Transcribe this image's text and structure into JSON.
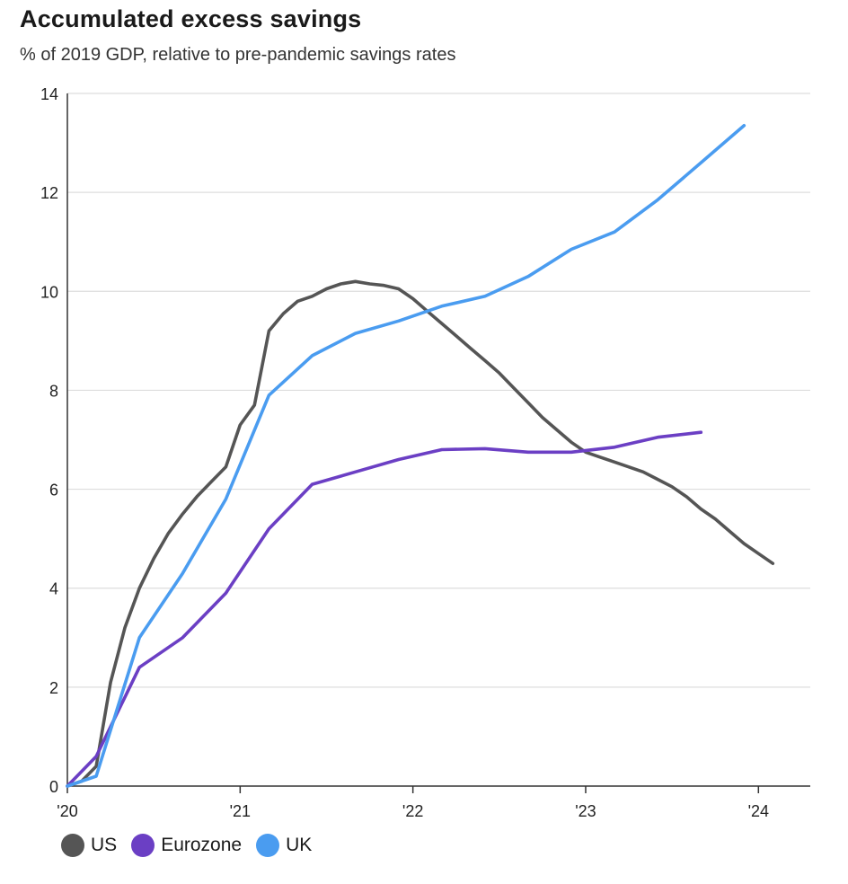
{
  "header": {
    "title": "Accumulated  excess savings",
    "subtitle": "% of 2019 GDP, relative to pre-pandemic savings rates"
  },
  "chart_data": {
    "type": "line",
    "title": "Accumulated  excess savings",
    "subtitle": "% of 2019 GDP, relative to pre-pandemic savings rates",
    "xlabel": "",
    "ylabel": "",
    "ylim": [
      0,
      14
    ],
    "xlim": [
      2020.0,
      2024.3
    ],
    "x_ticks": [
      {
        "value": 2020,
        "label": "'20"
      },
      {
        "value": 2021,
        "label": "'21"
      },
      {
        "value": 2022,
        "label": "'22"
      },
      {
        "value": 2023,
        "label": "'23"
      },
      {
        "value": 2024,
        "label": "'24"
      }
    ],
    "y_ticks": [
      0,
      2,
      4,
      6,
      8,
      10,
      12,
      14
    ],
    "grid": "horizontal",
    "legend_position": "bottom-left",
    "series": [
      {
        "name": "US",
        "color": "#555555",
        "points": [
          [
            2020.0,
            0.0
          ],
          [
            2020.083,
            0.1
          ],
          [
            2020.167,
            0.4
          ],
          [
            2020.25,
            2.1
          ],
          [
            2020.333,
            3.2
          ],
          [
            2020.417,
            4.0
          ],
          [
            2020.5,
            4.6
          ],
          [
            2020.583,
            5.1
          ],
          [
            2020.667,
            5.5
          ],
          [
            2020.75,
            5.85
          ],
          [
            2020.833,
            6.15
          ],
          [
            2020.917,
            6.45
          ],
          [
            2021.0,
            7.3
          ],
          [
            2021.083,
            7.7
          ],
          [
            2021.167,
            9.2
          ],
          [
            2021.25,
            9.55
          ],
          [
            2021.333,
            9.8
          ],
          [
            2021.417,
            9.9
          ],
          [
            2021.5,
            10.05
          ],
          [
            2021.583,
            10.15
          ],
          [
            2021.667,
            10.2
          ],
          [
            2021.75,
            10.15
          ],
          [
            2021.833,
            10.12
          ],
          [
            2021.917,
            10.05
          ],
          [
            2022.0,
            9.85
          ],
          [
            2022.083,
            9.6
          ],
          [
            2022.167,
            9.35
          ],
          [
            2022.25,
            9.1
          ],
          [
            2022.333,
            8.85
          ],
          [
            2022.417,
            8.6
          ],
          [
            2022.5,
            8.35
          ],
          [
            2022.583,
            8.05
          ],
          [
            2022.667,
            7.75
          ],
          [
            2022.75,
            7.45
          ],
          [
            2022.833,
            7.2
          ],
          [
            2022.917,
            6.95
          ],
          [
            2023.0,
            6.75
          ],
          [
            2023.083,
            6.65
          ],
          [
            2023.167,
            6.55
          ],
          [
            2023.25,
            6.45
          ],
          [
            2023.333,
            6.35
          ],
          [
            2023.417,
            6.2
          ],
          [
            2023.5,
            6.05
          ],
          [
            2023.583,
            5.85
          ],
          [
            2023.667,
            5.6
          ],
          [
            2023.75,
            5.4
          ],
          [
            2023.833,
            5.15
          ],
          [
            2023.917,
            4.9
          ],
          [
            2024.0,
            4.7
          ],
          [
            2024.083,
            4.5
          ]
        ]
      },
      {
        "name": "Eurozone",
        "color": "#6b3fc4",
        "points": [
          [
            2020.0,
            0.0
          ],
          [
            2020.167,
            0.6
          ],
          [
            2020.25,
            1.2
          ],
          [
            2020.417,
            2.4
          ],
          [
            2020.667,
            3.0
          ],
          [
            2020.917,
            3.9
          ],
          [
            2021.167,
            5.2
          ],
          [
            2021.417,
            6.1
          ],
          [
            2021.667,
            6.35
          ],
          [
            2021.917,
            6.6
          ],
          [
            2022.167,
            6.8
          ],
          [
            2022.417,
            6.82
          ],
          [
            2022.667,
            6.75
          ],
          [
            2022.917,
            6.75
          ],
          [
            2023.167,
            6.85
          ],
          [
            2023.417,
            7.05
          ],
          [
            2023.667,
            7.15
          ]
        ]
      },
      {
        "name": "UK",
        "color": "#4a9cf0",
        "points": [
          [
            2020.0,
            0.0
          ],
          [
            2020.083,
            0.1
          ],
          [
            2020.167,
            0.2
          ],
          [
            2020.417,
            3.0
          ],
          [
            2020.667,
            4.3
          ],
          [
            2020.917,
            5.8
          ],
          [
            2021.167,
            7.9
          ],
          [
            2021.417,
            8.7
          ],
          [
            2021.667,
            9.15
          ],
          [
            2021.917,
            9.4
          ],
          [
            2022.167,
            9.7
          ],
          [
            2022.417,
            9.9
          ],
          [
            2022.667,
            10.3
          ],
          [
            2022.917,
            10.85
          ],
          [
            2023.167,
            11.2
          ],
          [
            2023.417,
            11.85
          ],
          [
            2023.667,
            12.6
          ],
          [
            2023.917,
            13.35
          ]
        ]
      }
    ]
  }
}
